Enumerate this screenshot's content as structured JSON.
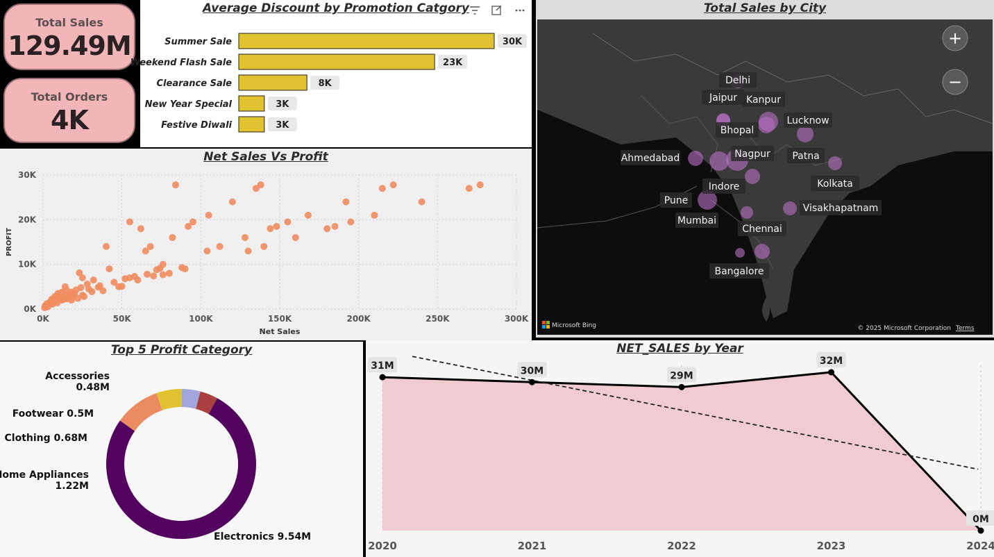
{
  "kpis": {
    "total_sales": {
      "label": "Total Sales",
      "value": "129.49M"
    },
    "total_orders": {
      "label": "Total Orders",
      "value": "4K"
    }
  },
  "discount_chart": {
    "title": "Average Discount by Promotion Catgory",
    "header_icons": [
      "filter-icon",
      "focus-mode-icon",
      "more-options-icon"
    ],
    "chart_data": {
      "type": "bar",
      "orientation": "horizontal",
      "categories": [
        "Summer Sale",
        "Weekend Flash Sale",
        "Clearance Sale",
        "New Year Special",
        "Festive Diwali"
      ],
      "values": [
        30000,
        23000,
        8000,
        3000,
        3000
      ],
      "value_labels": [
        "30K",
        "23K",
        "8K",
        "3K",
        "3K"
      ],
      "xlim": [
        0,
        30000
      ],
      "color": "#e1c331"
    }
  },
  "scatter_chart": {
    "title": "Net Sales Vs Profit",
    "chart_data": {
      "type": "scatter",
      "xlabel": "Net Sales",
      "ylabel": "PROFIT",
      "xlim": [
        0,
        300000
      ],
      "ylim": [
        0,
        30000
      ],
      "xticks": [
        "0K",
        "50K",
        "100K",
        "150K",
        "200K",
        "250K",
        "300K"
      ],
      "yticks": [
        "0K",
        "10K",
        "20K",
        "30K"
      ],
      "color": "#ef8c5f",
      "grid": true,
      "points": [
        [
          1000,
          300
        ],
        [
          2000,
          600
        ],
        [
          3000,
          900
        ],
        [
          4000,
          1200
        ],
        [
          5000,
          1500
        ],
        [
          6000,
          1800
        ],
        [
          7000,
          2100
        ],
        [
          8000,
          2400
        ],
        [
          9000,
          2700
        ],
        [
          10000,
          3000
        ],
        [
          1500,
          800
        ],
        [
          2500,
          1200
        ],
        [
          3500,
          1000
        ],
        [
          4500,
          1600
        ],
        [
          5500,
          2200
        ],
        [
          6500,
          1500
        ],
        [
          7500,
          2800
        ],
        [
          8500,
          1900
        ],
        [
          9500,
          3500
        ],
        [
          11000,
          2500
        ],
        [
          12000,
          3800
        ],
        [
          13000,
          2200
        ],
        [
          14000,
          3000
        ],
        [
          15000,
          4200
        ],
        [
          16000,
          2600
        ],
        [
          17000,
          3300
        ],
        [
          18000,
          2000
        ],
        [
          19000,
          2900
        ],
        [
          20000,
          3600
        ],
        [
          22000,
          2400
        ],
        [
          24000,
          4800
        ],
        [
          25000,
          3100
        ],
        [
          23000,
          8100
        ],
        [
          26000,
          2800
        ],
        [
          29000,
          4500
        ],
        [
          31000,
          3900
        ],
        [
          32000,
          6500
        ],
        [
          35000,
          4900
        ],
        [
          36000,
          5200
        ],
        [
          38000,
          4100
        ],
        [
          40000,
          14000
        ],
        [
          42000,
          9000
        ],
        [
          45000,
          6000
        ],
        [
          48000,
          5000
        ],
        [
          50000,
          5100
        ],
        [
          52000,
          6800
        ],
        [
          55000,
          7000
        ],
        [
          58000,
          7300
        ],
        [
          60000,
          6500
        ],
        [
          62000,
          18000
        ],
        [
          65000,
          13000
        ],
        [
          66000,
          7800
        ],
        [
          68000,
          14000
        ],
        [
          70000,
          7400
        ],
        [
          72000,
          8800
        ],
        [
          74000,
          9100
        ],
        [
          76000,
          7700
        ],
        [
          80000,
          8000
        ],
        [
          82000,
          16000
        ],
        [
          84000,
          27800
        ],
        [
          88000,
          9300
        ],
        [
          90000,
          9000
        ],
        [
          92000,
          18500
        ],
        [
          95000,
          19500
        ],
        [
          104000,
          13000
        ],
        [
          105000,
          21000
        ],
        [
          112000,
          14000
        ],
        [
          120000,
          24000
        ],
        [
          128000,
          16000
        ],
        [
          130000,
          13000
        ],
        [
          135000,
          27000
        ],
        [
          138000,
          27800
        ],
        [
          140000,
          14000
        ],
        [
          144000,
          18000
        ],
        [
          148000,
          18500
        ],
        [
          155000,
          19500
        ],
        [
          160000,
          16000
        ],
        [
          168000,
          21000
        ],
        [
          180000,
          18000
        ],
        [
          185000,
          18500
        ],
        [
          192000,
          24000
        ],
        [
          195000,
          19500
        ],
        [
          210000,
          21000
        ],
        [
          215000,
          27000
        ],
        [
          222000,
          27800
        ],
        [
          240000,
          24000
        ],
        [
          270000,
          27000
        ],
        [
          277000,
          27800
        ],
        [
          55000,
          19500
        ],
        [
          76000,
          10000
        ],
        [
          3000,
          500
        ],
        [
          6000,
          1100
        ],
        [
          9000,
          1400
        ],
        [
          12000,
          2000
        ],
        [
          15000,
          2300
        ],
        [
          18000,
          3800
        ],
        [
          21000,
          4300
        ],
        [
          14000,
          5000
        ],
        [
          25000,
          7000
        ],
        [
          28000,
          5600
        ]
      ]
    }
  },
  "map": {
    "title": "Total Sales by City",
    "zoom_in_label": "+",
    "zoom_out_label": "−",
    "attribution_left": "Microsoft Bing",
    "attribution_right": "© 2025 Microsoft Corporation",
    "terms_label": "Terms",
    "cities": [
      {
        "name": "Delhi"
      },
      {
        "name": "Jaipur"
      },
      {
        "name": "Kanpur"
      },
      {
        "name": "Lucknow"
      },
      {
        "name": "Bhopal"
      },
      {
        "name": "Ahmedabad"
      },
      {
        "name": "Nagpur"
      },
      {
        "name": "Patna"
      },
      {
        "name": "Indore"
      },
      {
        "name": "Kolkata"
      },
      {
        "name": "Pune"
      },
      {
        "name": "Visakhapatnam"
      },
      {
        "name": "Mumbai"
      },
      {
        "name": "Chennai"
      },
      {
        "name": "Bangalore"
      }
    ],
    "bubble_color": "#b86fc4"
  },
  "donut_chart": {
    "title": "Top 5 Profit Category",
    "chart_data": {
      "type": "pie",
      "donut": true,
      "slices": [
        {
          "name": "Electronics",
          "value": 9.54,
          "label": "Electronics 9.54M",
          "color": "#52045e"
        },
        {
          "name": "Home Appliances",
          "value": 1.22,
          "label": "Home Appliances 1.22M",
          "color": "#ea8b62"
        },
        {
          "name": "Clothing",
          "value": 0.68,
          "label": "Clothing 0.68M",
          "color": "#e1c331"
        },
        {
          "name": "Footwear",
          "value": 0.5,
          "label": "Footwear 0.5M",
          "color": "#a3a6dd"
        },
        {
          "name": "Accessories",
          "value": 0.48,
          "label": "Accessories 0.48M",
          "color": "#a8403f"
        }
      ]
    }
  },
  "area_chart": {
    "title": "NET_SALES by Year",
    "chart_data": {
      "type": "area",
      "categories": [
        "2020",
        "2021",
        "2022",
        "2023",
        "2024"
      ],
      "values": [
        31,
        30,
        29,
        32,
        0
      ],
      "value_labels": [
        "31M",
        "30M",
        "29M",
        "32M",
        "0M"
      ],
      "unit": "M",
      "ylim": [
        0,
        32
      ],
      "trendline": true,
      "fill_color": "#f0cbd1",
      "line_color": "#000000"
    }
  }
}
